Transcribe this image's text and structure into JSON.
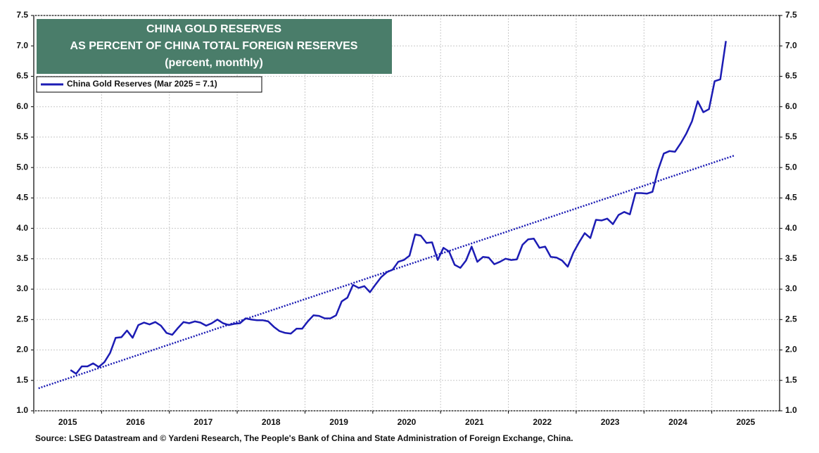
{
  "chart_data": {
    "type": "line",
    "title_lines": [
      "CHINA GOLD RESERVES",
      "AS PERCENT OF CHINA TOTAL FOREIGN RESERVES",
      "(percent, monthly)"
    ],
    "source": "Source: LSEG Datastream and © Yardeni Research, The People's Bank of China and State Administration of Foreign Exchange, China.",
    "xlim": [
      2015,
      2026
    ],
    "xticks": [
      2015,
      2016,
      2017,
      2018,
      2019,
      2020,
      2021,
      2022,
      2023,
      2024,
      2025
    ],
    "ylim": [
      1.0,
      7.5
    ],
    "yticks": [
      {
        "value": 1,
        "label": "1.0"
      },
      1.5,
      {
        "value": 2,
        "label": "2.0"
      },
      2.5,
      {
        "value": 3,
        "label": "3.0"
      },
      3.5,
      {
        "value": 4,
        "label": "4.0"
      },
      4.5,
      {
        "value": 5,
        "label": "5.0"
      },
      5.5,
      {
        "value": 6,
        "label": "6.0"
      },
      6.5,
      {
        "value": 7,
        "label": "7.0"
      },
      7.5
    ],
    "y2lim": [
      1.0,
      7.5
    ],
    "y2ticks": [
      {
        "value": 1,
        "label": "1.0"
      },
      1.5,
      {
        "value": 2,
        "label": "2.0"
      },
      2.5,
      {
        "value": 3,
        "label": "3.0"
      },
      3.5,
      {
        "value": 4,
        "label": "4.0"
      },
      4.5,
      {
        "value": 5,
        "label": "5.0"
      },
      5.5,
      {
        "value": 6,
        "label": "6.0"
      },
      6.5,
      {
        "value": 7,
        "label": "7.0"
      },
      7.5
    ],
    "grid": true,
    "series": [
      {
        "name": "China Gold Reserves (Mar 2025 = 7.1)",
        "color": "#1c1cb4",
        "x": [
          2015.542,
          2015.625,
          2015.708,
          2015.792,
          2015.875,
          2015.958,
          2016.042,
          2016.125,
          2016.208,
          2016.292,
          2016.375,
          2016.458,
          2016.542,
          2016.625,
          2016.708,
          2016.792,
          2016.875,
          2016.958,
          2017.042,
          2017.125,
          2017.208,
          2017.292,
          2017.375,
          2017.458,
          2017.542,
          2017.625,
          2017.708,
          2017.792,
          2017.875,
          2017.958,
          2018.042,
          2018.125,
          2018.208,
          2018.292,
          2018.375,
          2018.458,
          2018.542,
          2018.625,
          2018.708,
          2018.792,
          2018.875,
          2018.958,
          2019.042,
          2019.125,
          2019.208,
          2019.292,
          2019.375,
          2019.458,
          2019.542,
          2019.625,
          2019.708,
          2019.792,
          2019.875,
          2019.958,
          2020.042,
          2020.125,
          2020.208,
          2020.292,
          2020.375,
          2020.458,
          2020.542,
          2020.625,
          2020.708,
          2020.792,
          2020.875,
          2020.958,
          2021.042,
          2021.125,
          2021.208,
          2021.292,
          2021.375,
          2021.458,
          2021.542,
          2021.625,
          2021.708,
          2021.792,
          2021.875,
          2021.958,
          2022.042,
          2022.125,
          2022.208,
          2022.292,
          2022.375,
          2022.458,
          2022.542,
          2022.625,
          2022.708,
          2022.792,
          2022.875,
          2022.958,
          2023.042,
          2023.125,
          2023.208,
          2023.292,
          2023.375,
          2023.458,
          2023.542,
          2023.625,
          2023.708,
          2023.792,
          2023.875,
          2023.958,
          2024.042,
          2024.125,
          2024.208,
          2024.292,
          2024.375,
          2024.458,
          2024.542,
          2024.625,
          2024.708,
          2024.792,
          2024.875,
          2024.958,
          2025.042,
          2025.125,
          2025.208
        ],
        "values": [
          1.67,
          1.61,
          1.73,
          1.73,
          1.78,
          1.72,
          1.8,
          1.95,
          2.2,
          2.21,
          2.32,
          2.2,
          2.41,
          2.45,
          2.42,
          2.46,
          2.4,
          2.28,
          2.25,
          2.36,
          2.46,
          2.44,
          2.47,
          2.45,
          2.4,
          2.44,
          2.5,
          2.44,
          2.41,
          2.43,
          2.44,
          2.52,
          2.5,
          2.49,
          2.49,
          2.47,
          2.38,
          2.31,
          2.28,
          2.27,
          2.35,
          2.35,
          2.47,
          2.57,
          2.56,
          2.52,
          2.52,
          2.57,
          2.8,
          2.86,
          3.07,
          3.02,
          3.05,
          2.95,
          3.08,
          3.2,
          3.28,
          3.32,
          3.45,
          3.48,
          3.55,
          3.9,
          3.88,
          3.76,
          3.77,
          3.48,
          3.68,
          3.62,
          3.4,
          3.35,
          3.47,
          3.7,
          3.45,
          3.53,
          3.52,
          3.41,
          3.45,
          3.5,
          3.48,
          3.49,
          3.73,
          3.82,
          3.83,
          3.68,
          3.7,
          3.53,
          3.52,
          3.47,
          3.37,
          3.6,
          3.77,
          3.92,
          3.84,
          4.14,
          4.13,
          4.16,
          4.07,
          4.22,
          4.27,
          4.23,
          4.58,
          4.58,
          4.57,
          4.6,
          4.96,
          5.23,
          5.27,
          5.26,
          5.4,
          5.56,
          5.76,
          6.09,
          5.91,
          5.96,
          6.42,
          6.45,
          7.08
        ]
      }
    ],
    "trend": {
      "color": "#1c1cb4",
      "x": [
        2015.07,
        2025.34
      ],
      "values": [
        1.37,
        5.2
      ]
    }
  }
}
